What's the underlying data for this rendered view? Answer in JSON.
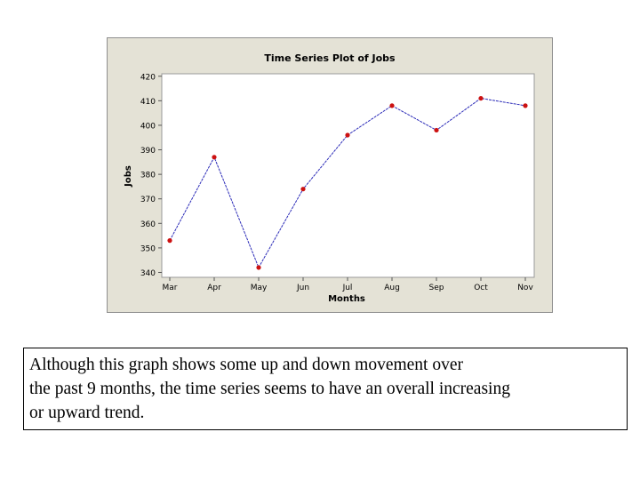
{
  "chart_data": {
    "type": "line",
    "title": "Time Series Plot of Jobs",
    "xlabel": "Months",
    "ylabel": "Jobs",
    "categories": [
      "Mar",
      "Apr",
      "May",
      "Jun",
      "Jul",
      "Aug",
      "Sep",
      "Oct",
      "Nov"
    ],
    "values": [
      353,
      387,
      342,
      374,
      396,
      408,
      398,
      411,
      408
    ],
    "yticks": [
      340,
      350,
      360,
      370,
      380,
      390,
      400,
      410,
      420
    ],
    "ylim": [
      338,
      421
    ],
    "grid": false,
    "line_color": "#2b2bb8",
    "marker_color": "#cc1111",
    "plot_background": "#ffffff",
    "frame_background": "#e4e2d6"
  },
  "caption": {
    "lines": [
      "Although this graph shows some up and down movement over",
      "the past 9 months, the time series seems to have an overall increasing",
      "or upward trend."
    ]
  }
}
